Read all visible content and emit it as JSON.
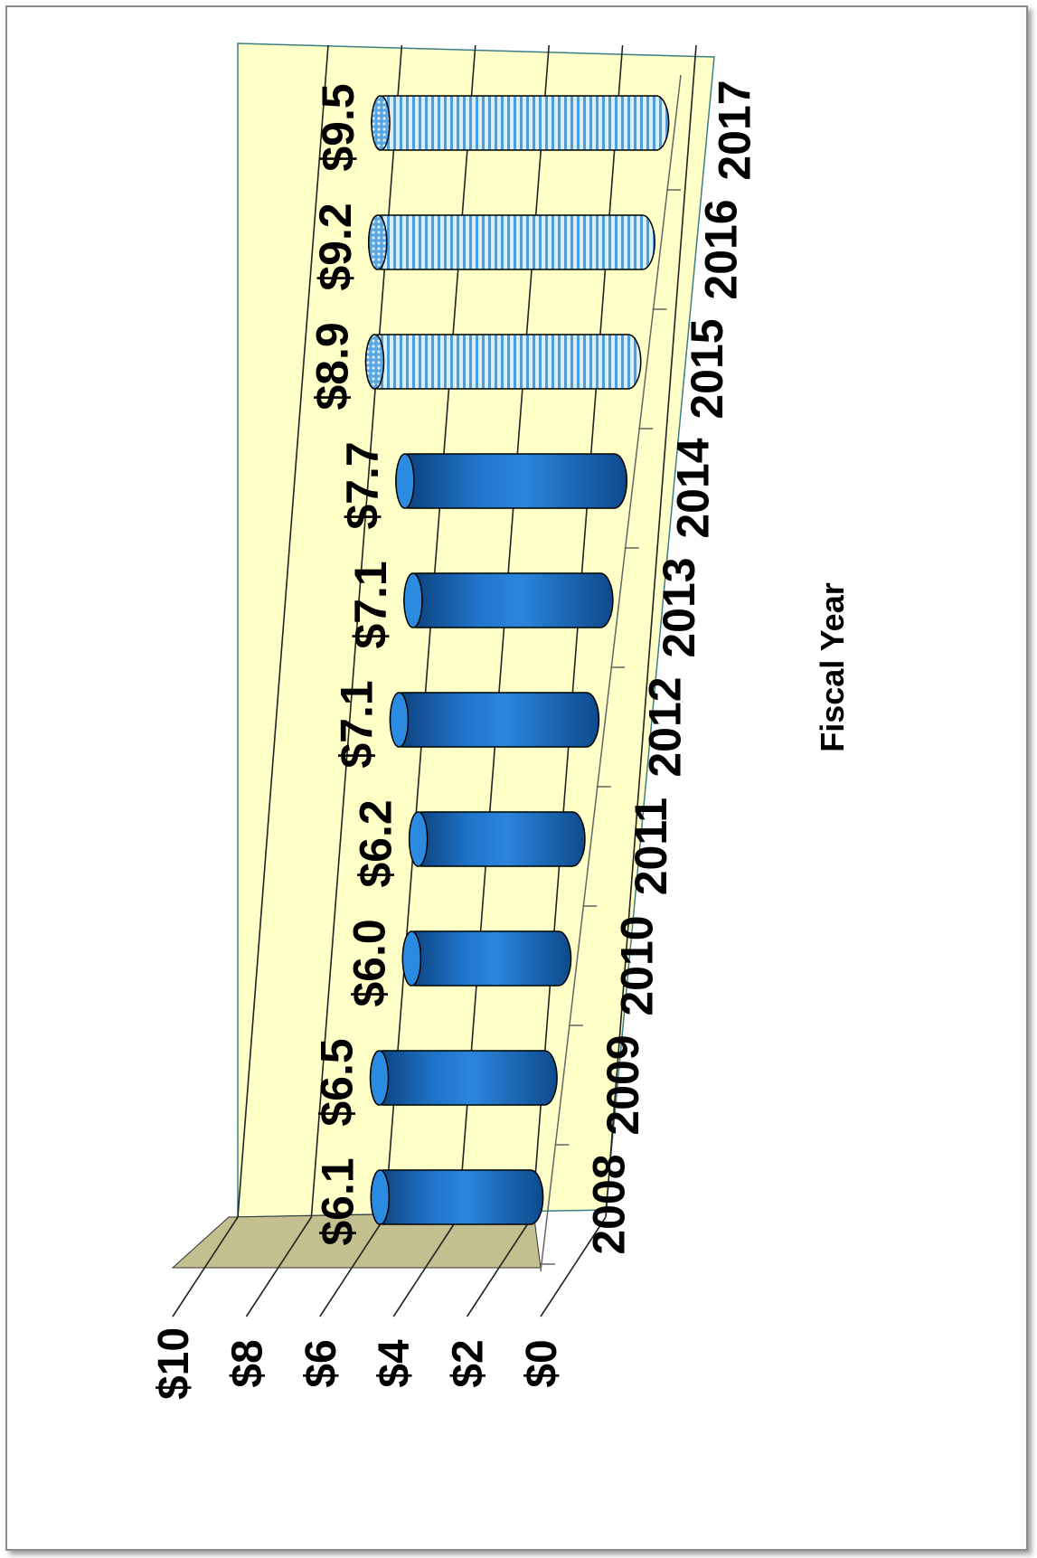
{
  "chart_data": {
    "type": "bar",
    "style": "3d-cylinder",
    "orientation": "rotated-90",
    "categories": [
      "2008",
      "2009",
      "2010",
      "2011",
      "2012",
      "2013",
      "2014",
      "2015",
      "2016",
      "2017"
    ],
    "values": [
      6.1,
      6.5,
      6.0,
      6.2,
      7.1,
      7.1,
      7.7,
      8.9,
      9.2,
      9.5
    ],
    "data_labels": [
      "$6.1",
      "$6.5",
      "$6.0",
      "$6.2",
      "$7.1",
      "$7.1",
      "$7.7",
      "$8.9",
      "$9.2",
      "$9.5"
    ],
    "pattern": [
      "solid",
      "solid",
      "solid",
      "solid",
      "solid",
      "solid",
      "solid",
      "striped",
      "striped",
      "striped"
    ],
    "xlabel": "Fiscal Year",
    "ylabel": "",
    "ylim": [
      0,
      10
    ],
    "yticks": [
      "$0",
      "$2",
      "$4",
      "$6",
      "$8",
      "$10"
    ],
    "grid": true
  },
  "colors": {
    "bar": "#1f6fc1",
    "bar_dark": "#0d3f7a",
    "stripe": "#6ab1e8",
    "wall": "#ffffc8",
    "floor": "#c4bf8e"
  }
}
